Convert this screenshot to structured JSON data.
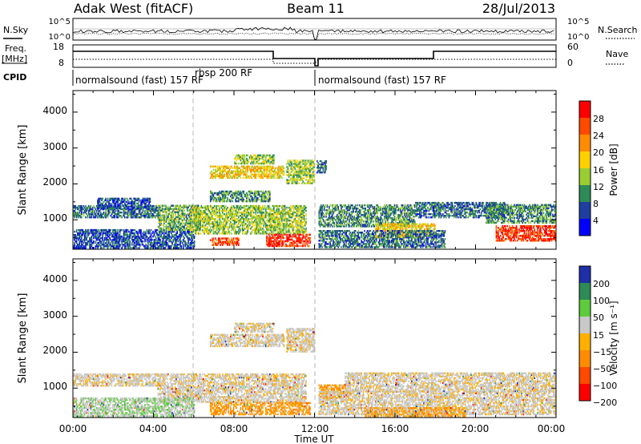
{
  "header": {
    "radar_title": "Adak West (fitACF)",
    "beam": "Beam 11",
    "date": "28/Jul/2013"
  },
  "strip_labels": {
    "nsky": "N.Sky",
    "nsearch": "N.Search",
    "freq_line1": "Freq.",
    "freq_line2": "[MHz]",
    "nave": "Nave",
    "cpid": "CPID"
  },
  "strip_ticks": {
    "noise_left": [
      "10^5",
      "10^0"
    ],
    "noise_right": [
      "10^5",
      "10^0"
    ],
    "freq_left": [
      "18",
      "8"
    ],
    "freq_right": [
      "60",
      "0"
    ]
  },
  "cpid_labels": [
    {
      "text": "normalsound (fast) 157 RF",
      "start_hour": 0
    },
    {
      "text": "rbsp 200 RF",
      "start_hour": 6
    },
    {
      "text": "normalsound (fast) 157 RF",
      "start_hour": 12
    }
  ],
  "axis": {
    "ylabel": "Slant Range [km]",
    "xlabel": "Time UT",
    "yticks": [
      "4000",
      "3000",
      "2000",
      "1000"
    ],
    "xticks": [
      "00:00",
      "04:00",
      "08:00",
      "12:00",
      "16:00",
      "20:00",
      "00:00"
    ]
  },
  "colorbars": {
    "power": {
      "label": "Power [dB]",
      "ticks": [
        "28",
        "24",
        "20",
        "16",
        "12",
        "8",
        "4"
      ],
      "colors": [
        "#ff0000",
        "#ff4a00",
        "#ff8c00",
        "#ffd000",
        "#9acd32",
        "#2e8b57",
        "#1e3fa0",
        "#0000ff"
      ]
    },
    "velocity": {
      "label": "Velocity [m s⁻¹]",
      "ticks": [
        "200",
        "100",
        "50",
        "15",
        "−15",
        "−50",
        "−100",
        "−200"
      ],
      "colors": [
        "#1e2fa8",
        "#2e8b57",
        "#5ecb3c",
        "#c8c8c8",
        "#ffb000",
        "#ff8c00",
        "#ff4a00",
        "#ff0000"
      ]
    }
  },
  "chart_data": {
    "type": "heatmap",
    "title": "Adak West (fitACF)",
    "xlabel": "Time UT",
    "ylabel": "Slant Range [km]",
    "xlim_hours": [
      0,
      24
    ],
    "ylim_km": [
      180,
      4600
    ],
    "power_regions": [
      {
        "t0": 0.0,
        "t1": 4.3,
        "r0": 1050,
        "r1": 1400,
        "dB": 8
      },
      {
        "t0": 1.2,
        "t1": 3.8,
        "r0": 1300,
        "r1": 1600,
        "dB": 6
      },
      {
        "t0": 0.0,
        "t1": 6.0,
        "r0": 200,
        "r1": 700,
        "dB": 6
      },
      {
        "t0": 4.2,
        "t1": 6.2,
        "r0": 700,
        "r1": 1400,
        "dB": 12
      },
      {
        "t0": 5.8,
        "t1": 11.6,
        "r0": 600,
        "r1": 1400,
        "dB": 14
      },
      {
        "t0": 6.8,
        "t1": 9.8,
        "r0": 1500,
        "r1": 1800,
        "dB": 10
      },
      {
        "t0": 6.8,
        "t1": 10.5,
        "r0": 2150,
        "r1": 2500,
        "dB": 18
      },
      {
        "t0": 8.0,
        "t1": 10.0,
        "r0": 2550,
        "r1": 2800,
        "dB": 14
      },
      {
        "t0": 10.6,
        "t1": 12.0,
        "r0": 2000,
        "r1": 2650,
        "dB": 14
      },
      {
        "t0": 6.8,
        "t1": 8.2,
        "r0": 280,
        "r1": 480,
        "dB": 26
      },
      {
        "t0": 9.6,
        "t1": 11.8,
        "r0": 250,
        "r1": 600,
        "dB": 28
      },
      {
        "t0": 12.1,
        "t1": 12.6,
        "r0": 2300,
        "r1": 2650,
        "dB": 8
      },
      {
        "t0": 12.2,
        "t1": 17.0,
        "r0": 800,
        "r1": 1400,
        "dB": 10
      },
      {
        "t0": 17.0,
        "t1": 21.5,
        "r0": 1050,
        "r1": 1500,
        "dB": 8
      },
      {
        "t0": 15.0,
        "t1": 18.0,
        "r0": 500,
        "r1": 900,
        "dB": 18
      },
      {
        "t0": 12.2,
        "t1": 18.5,
        "r0": 220,
        "r1": 700,
        "dB": 8
      },
      {
        "t0": 20.5,
        "t1": 24.0,
        "r0": 900,
        "r1": 1400,
        "dB": 10
      },
      {
        "t0": 21.0,
        "t1": 24.0,
        "r0": 400,
        "r1": 850,
        "dB": 28
      }
    ],
    "velocity_regions": [
      {
        "t0": 0.0,
        "t1": 4.3,
        "r0": 1050,
        "r1": 1400,
        "v": 0
      },
      {
        "t0": 4.2,
        "t1": 11.6,
        "r0": 600,
        "r1": 1400,
        "v": 0
      },
      {
        "t0": 6.8,
        "t1": 10.5,
        "r0": 2150,
        "r1": 2500,
        "v": 0
      },
      {
        "t0": 8.0,
        "t1": 10.0,
        "r0": 2550,
        "r1": 2800,
        "v": 0
      },
      {
        "t0": 10.6,
        "t1": 12.0,
        "r0": 2000,
        "r1": 2650,
        "v": 0
      },
      {
        "t0": 0.0,
        "t1": 6.0,
        "r0": 200,
        "r1": 700,
        "v": 20
      },
      {
        "t0": 6.8,
        "t1": 11.8,
        "r0": 250,
        "r1": 600,
        "v": -40
      },
      {
        "t0": 12.2,
        "t1": 13.8,
        "r0": 700,
        "r1": 1100,
        "v": -40
      },
      {
        "t0": 12.2,
        "t1": 24.0,
        "r0": 250,
        "r1": 900,
        "v": 0
      },
      {
        "t0": 13.5,
        "t1": 24.0,
        "r0": 900,
        "r1": 1400,
        "v": 0
      },
      {
        "t0": 14.5,
        "t1": 19.5,
        "r0": 200,
        "r1": 450,
        "v": -30
      }
    ],
    "boundaries_hours": [
      6.0,
      12.0
    ]
  }
}
